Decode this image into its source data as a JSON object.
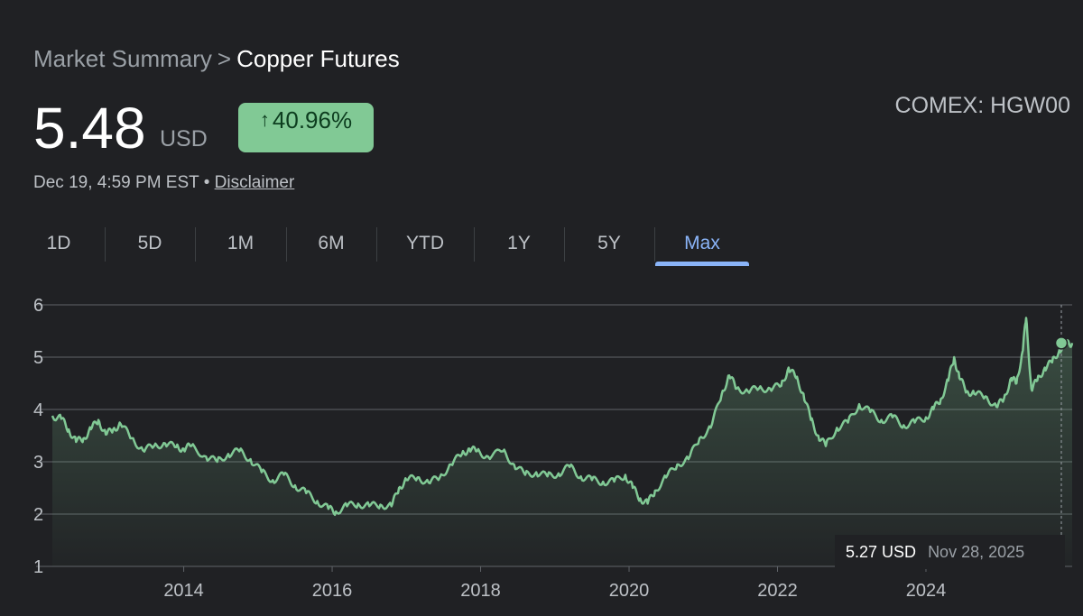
{
  "header": {
    "breadcrumb_parent": "Market Summary",
    "breadcrumb_sep": ">",
    "breadcrumb_current": "Copper Futures",
    "price": "5.48",
    "currency": "USD",
    "change_arrow": "↑",
    "change": "40.96%",
    "ticker": "COMEX: HGW00",
    "timestamp": "Dec 19, 4:59 PM EST",
    "bullet": "•",
    "disclaimer": "Disclaimer"
  },
  "tabs": [
    {
      "label": "1D"
    },
    {
      "label": "5D"
    },
    {
      "label": "1M"
    },
    {
      "label": "6M"
    },
    {
      "label": "YTD"
    },
    {
      "label": "1Y"
    },
    {
      "label": "5Y"
    },
    {
      "label": "Max",
      "active": true
    }
  ],
  "tooltip": {
    "price": "5.27 USD",
    "date": "Nov 28, 2025"
  },
  "colors": {
    "background": "#202124",
    "line": "#81c995",
    "grid": "#5f6368",
    "accent": "#8ab4f8",
    "badge": "#81c995"
  },
  "chart_data": {
    "type": "area",
    "title": "",
    "xlabel": "",
    "ylabel": "",
    "ylim": [
      1,
      6
    ],
    "xlim": [
      2012.23,
      2025.97
    ],
    "yticks": [
      1,
      2,
      3,
      4,
      5,
      6
    ],
    "xticks": [
      2014,
      2016,
      2018,
      2020,
      2022,
      2024
    ],
    "grid": true,
    "series": [
      {
        "x": [
          2012.23,
          2012.35,
          2012.45,
          2012.55,
          2012.65,
          2012.75,
          2012.85,
          2012.95,
          2013.05,
          2013.15,
          2013.3,
          2013.45,
          2013.6,
          2013.75,
          2013.9,
          2014.0,
          2014.1,
          2014.3,
          2014.45,
          2014.6,
          2014.75,
          2014.9,
          2015.05,
          2015.2,
          2015.35,
          2015.5,
          2015.65,
          2015.8,
          2015.95,
          2016.05,
          2016.2,
          2016.35,
          2016.5,
          2016.65,
          2016.8,
          2016.9,
          2017.0,
          2017.15,
          2017.3,
          2017.45,
          2017.6,
          2017.75,
          2017.85,
          2017.95,
          2018.1,
          2018.3,
          2018.45,
          2018.6,
          2018.75,
          2018.9,
          2019.05,
          2019.2,
          2019.35,
          2019.5,
          2019.65,
          2019.8,
          2019.95,
          2020.05,
          2020.15,
          2020.25,
          2020.35,
          2020.5,
          2020.65,
          2020.8,
          2020.95,
          2021.1,
          2021.25,
          2021.35,
          2021.45,
          2021.6,
          2021.75,
          2021.9,
          2022.05,
          2022.15,
          2022.25,
          2022.35,
          2022.45,
          2022.55,
          2022.65,
          2022.8,
          2022.95,
          2023.1,
          2023.25,
          2023.4,
          2023.55,
          2023.7,
          2023.85,
          2024.0,
          2024.1,
          2024.2,
          2024.3,
          2024.38,
          2024.45,
          2024.55,
          2024.65,
          2024.8,
          2024.95,
          2025.05,
          2025.15,
          2025.22,
          2025.3,
          2025.35,
          2025.42,
          2025.5,
          2025.6,
          2025.7,
          2025.8,
          2025.9,
          2025.97
        ],
        "y": [
          3.88,
          3.82,
          3.62,
          3.38,
          3.45,
          3.62,
          3.8,
          3.52,
          3.62,
          3.72,
          3.45,
          3.22,
          3.3,
          3.35,
          3.28,
          3.25,
          3.3,
          3.1,
          3.0,
          3.15,
          3.2,
          3.05,
          2.8,
          2.65,
          2.75,
          2.55,
          2.4,
          2.25,
          2.1,
          2.05,
          2.15,
          2.2,
          2.15,
          2.18,
          2.15,
          2.5,
          2.65,
          2.7,
          2.6,
          2.7,
          2.95,
          3.15,
          3.25,
          3.2,
          3.1,
          3.2,
          2.95,
          2.75,
          2.8,
          2.72,
          2.78,
          2.9,
          2.72,
          2.65,
          2.62,
          2.62,
          2.75,
          2.5,
          2.3,
          2.2,
          2.45,
          2.7,
          2.95,
          3.05,
          3.45,
          3.65,
          4.3,
          4.65,
          4.4,
          4.35,
          4.4,
          4.4,
          4.45,
          4.8,
          4.6,
          4.3,
          3.8,
          3.5,
          3.3,
          3.65,
          3.75,
          4.1,
          3.95,
          3.8,
          3.85,
          3.7,
          3.75,
          3.85,
          4.0,
          4.2,
          4.55,
          5.0,
          4.6,
          4.35,
          4.3,
          4.25,
          4.05,
          4.2,
          4.6,
          4.5,
          5.1,
          5.75,
          4.4,
          4.55,
          4.8,
          4.9,
          5.15,
          5.25,
          5.27
        ]
      }
    ]
  }
}
